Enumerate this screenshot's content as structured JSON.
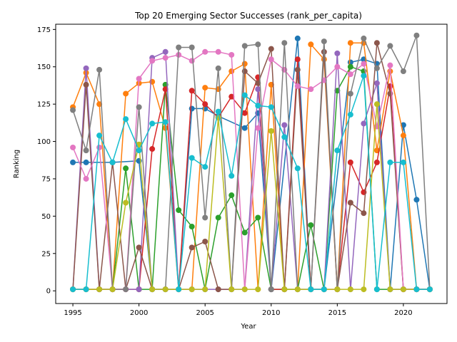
{
  "chart_data": {
    "type": "line",
    "title": "Top 20 Emerging Sector Successes (rank_per_capita)",
    "xlabel": "Year",
    "ylabel": "Ranking",
    "xlim": [
      1993.7,
      2023.3
    ],
    "ylim": [
      -8.5,
      178.5
    ],
    "xticks": [
      1995,
      2000,
      2005,
      2010,
      2015,
      2020
    ],
    "yticks": [
      0,
      25,
      50,
      75,
      100,
      125,
      150,
      175
    ],
    "grid": false,
    "legend": "none",
    "marker": "circle",
    "series": [
      {
        "color": "#1f77b4",
        "points": [
          [
            1995,
            86
          ],
          [
            1996,
            86
          ],
          [
            1998,
            86
          ],
          [
            2000,
            87
          ],
          [
            2001,
            1
          ],
          [
            2002,
            1
          ],
          [
            2003,
            1
          ],
          [
            2004,
            122
          ],
          [
            2005,
            122
          ],
          [
            2006,
            117
          ],
          [
            2008,
            109
          ],
          [
            2009,
            119
          ],
          [
            2010,
            1
          ],
          [
            2012,
            169
          ],
          [
            2013,
            1
          ],
          [
            2014,
            1
          ],
          [
            2016,
            153
          ],
          [
            2017,
            155
          ],
          [
            2018,
            152
          ],
          [
            2019,
            1
          ],
          [
            2020,
            111
          ],
          [
            2021,
            61
          ],
          [
            2022,
            1
          ]
        ]
      },
      {
        "color": "#ff7f0e",
        "points": [
          [
            1995,
            123
          ],
          [
            1996,
            146
          ],
          [
            1997,
            125
          ],
          [
            1998,
            1
          ],
          [
            1999,
            132
          ],
          [
            2000,
            139
          ],
          [
            2001,
            140
          ],
          [
            2002,
            109
          ],
          [
            2003,
            1
          ],
          [
            2004,
            1
          ],
          [
            2005,
            136
          ],
          [
            2006,
            135
          ],
          [
            2007,
            147
          ],
          [
            2008,
            152
          ],
          [
            2009,
            1
          ],
          [
            2010,
            138
          ],
          [
            2011,
            1
          ],
          [
            2012,
            1
          ],
          [
            2013,
            165
          ],
          [
            2014,
            155
          ],
          [
            2015,
            1
          ],
          [
            2016,
            166
          ],
          [
            2017,
            166
          ],
          [
            2018,
            94
          ],
          [
            2019,
            147
          ],
          [
            2020,
            104
          ],
          [
            2021,
            1
          ],
          [
            2022,
            1
          ]
        ]
      },
      {
        "color": "#2ca02c",
        "points": [
          [
            1995,
            1
          ],
          [
            1996,
            1
          ],
          [
            1997,
            1
          ],
          [
            1998,
            1
          ],
          [
            1999,
            82
          ],
          [
            2000,
            1
          ],
          [
            2001,
            1
          ],
          [
            2002,
            138
          ],
          [
            2003,
            54
          ],
          [
            2004,
            43
          ],
          [
            2005,
            1
          ],
          [
            2006,
            49
          ],
          [
            2007,
            64
          ],
          [
            2008,
            39
          ],
          [
            2009,
            49
          ],
          [
            2010,
            1
          ],
          [
            2011,
            1
          ],
          [
            2012,
            1
          ],
          [
            2013,
            44
          ],
          [
            2014,
            1
          ],
          [
            2015,
            134
          ],
          [
            2016,
            150
          ],
          [
            2017,
            147
          ],
          [
            2018,
            1
          ],
          [
            2019,
            1
          ],
          [
            2020,
            1
          ],
          [
            2021,
            1
          ],
          [
            2022,
            1
          ]
        ]
      },
      {
        "color": "#d62728",
        "points": [
          [
            1995,
            1
          ],
          [
            1996,
            1
          ],
          [
            1997,
            1
          ],
          [
            1998,
            1
          ],
          [
            1999,
            1
          ],
          [
            2000,
            1
          ],
          [
            2001,
            95
          ],
          [
            2002,
            135
          ],
          [
            2003,
            1
          ],
          [
            2004,
            134
          ],
          [
            2005,
            125
          ],
          [
            2006,
            116
          ],
          [
            2007,
            130
          ],
          [
            2008,
            119
          ],
          [
            2009,
            143
          ],
          [
            2010,
            1
          ],
          [
            2011,
            1
          ],
          [
            2012,
            155
          ],
          [
            2013,
            1
          ],
          [
            2014,
            1
          ],
          [
            2015,
            1
          ],
          [
            2016,
            86
          ],
          [
            2017,
            66
          ],
          [
            2018,
            86
          ],
          [
            2019,
            137
          ],
          [
            2020,
            1
          ],
          [
            2021,
            1
          ],
          [
            2022,
            1
          ]
        ]
      },
      {
        "color": "#9467bd",
        "points": [
          [
            1995,
            1
          ],
          [
            1996,
            149
          ],
          [
            1997,
            1
          ],
          [
            1998,
            1
          ],
          [
            1999,
            1
          ],
          [
            2000,
            1
          ],
          [
            2001,
            156
          ],
          [
            2002,
            160
          ],
          [
            2003,
            1
          ],
          [
            2004,
            1
          ],
          [
            2005,
            1
          ],
          [
            2006,
            1
          ],
          [
            2007,
            1
          ],
          [
            2008,
            1
          ],
          [
            2009,
            135
          ],
          [
            2010,
            1
          ],
          [
            2011,
            111
          ],
          [
            2012,
            1
          ],
          [
            2013,
            1
          ],
          [
            2014,
            1
          ],
          [
            2015,
            159
          ],
          [
            2016,
            1
          ],
          [
            2017,
            112
          ],
          [
            2018,
            139
          ],
          [
            2019,
            1
          ],
          [
            2020,
            1
          ],
          [
            2021,
            1
          ],
          [
            2022,
            1
          ]
        ]
      },
      {
        "color": "#8c564b",
        "points": [
          [
            1995,
            1
          ],
          [
            1996,
            138
          ],
          [
            1997,
            1
          ],
          [
            1998,
            86
          ],
          [
            1999,
            1
          ],
          [
            2000,
            29
          ],
          [
            2001,
            1
          ],
          [
            2002,
            1
          ],
          [
            2003,
            1
          ],
          [
            2004,
            29
          ],
          [
            2005,
            33
          ],
          [
            2006,
            1
          ],
          [
            2007,
            1
          ],
          [
            2008,
            147
          ],
          [
            2009,
            139
          ],
          [
            2010,
            162
          ],
          [
            2011,
            1
          ],
          [
            2012,
            148
          ],
          [
            2013,
            1
          ],
          [
            2014,
            160
          ],
          [
            2015,
            1
          ],
          [
            2016,
            59
          ],
          [
            2017,
            52
          ],
          [
            2018,
            166
          ],
          [
            2019,
            132
          ],
          [
            2020,
            1
          ],
          [
            2021,
            1
          ],
          [
            2022,
            1
          ]
        ]
      },
      {
        "color": "#e377c2",
        "points": [
          [
            1995,
            96
          ],
          [
            1996,
            75
          ],
          [
            1997,
            96
          ],
          [
            1998,
            1
          ],
          [
            1999,
            1
          ],
          [
            2000,
            142
          ],
          [
            2001,
            154
          ],
          [
            2002,
            156
          ],
          [
            2003,
            158
          ],
          [
            2004,
            154
          ],
          [
            2005,
            160
          ],
          [
            2006,
            160
          ],
          [
            2007,
            158
          ],
          [
            2008,
            1
          ],
          [
            2009,
            109
          ],
          [
            2010,
            155
          ],
          [
            2011,
            148
          ],
          [
            2012,
            137
          ],
          [
            2013,
            135
          ],
          [
            2014,
            141
          ],
          [
            2015,
            150
          ],
          [
            2016,
            145
          ],
          [
            2017,
            152
          ],
          [
            2018,
            110
          ],
          [
            2019,
            151
          ],
          [
            2020,
            1
          ],
          [
            2021,
            1
          ],
          [
            2022,
            1
          ]
        ]
      },
      {
        "color": "#7f7f7f",
        "points": [
          [
            1995,
            121
          ],
          [
            1996,
            94
          ],
          [
            1997,
            148
          ],
          [
            1998,
            1
          ],
          [
            1999,
            1
          ],
          [
            2000,
            123
          ],
          [
            2001,
            1
          ],
          [
            2002,
            1
          ],
          [
            2003,
            163
          ],
          [
            2004,
            163
          ],
          [
            2005,
            49
          ],
          [
            2006,
            149
          ],
          [
            2007,
            1
          ],
          [
            2008,
            164
          ],
          [
            2009,
            165
          ],
          [
            2010,
            1
          ],
          [
            2011,
            166
          ],
          [
            2012,
            1
          ],
          [
            2013,
            1
          ],
          [
            2014,
            167
          ],
          [
            2015,
            1
          ],
          [
            2016,
            132
          ],
          [
            2017,
            169
          ],
          [
            2018,
            149
          ],
          [
            2019,
            164
          ],
          [
            2020,
            147
          ],
          [
            2021,
            171
          ],
          [
            2022,
            1
          ]
        ]
      },
      {
        "color": "#bcbd22",
        "points": [
          [
            1995,
            1
          ],
          [
            1996,
            1
          ],
          [
            1997,
            1
          ],
          [
            1998,
            1
          ],
          [
            1999,
            59
          ],
          [
            2000,
            98
          ],
          [
            2001,
            1
          ],
          [
            2002,
            1
          ],
          [
            2003,
            1
          ],
          [
            2004,
            1
          ],
          [
            2005,
            1
          ],
          [
            2006,
            116
          ],
          [
            2007,
            1
          ],
          [
            2008,
            1
          ],
          [
            2009,
            1
          ],
          [
            2010,
            107
          ],
          [
            2011,
            1
          ],
          [
            2012,
            1
          ],
          [
            2013,
            1
          ],
          [
            2014,
            1
          ],
          [
            2015,
            1
          ],
          [
            2016,
            1
          ],
          [
            2017,
            1
          ],
          [
            2018,
            125
          ],
          [
            2019,
            1
          ],
          [
            2020,
            1
          ],
          [
            2021,
            1
          ],
          [
            2022,
            1
          ]
        ]
      },
      {
        "color": "#17becf",
        "points": [
          [
            1995,
            1
          ],
          [
            1996,
            1
          ],
          [
            1997,
            104
          ],
          [
            1998,
            86
          ],
          [
            1999,
            115
          ],
          [
            2000,
            94
          ],
          [
            2001,
            112
          ],
          [
            2002,
            113
          ],
          [
            2003,
            1
          ],
          [
            2004,
            89
          ],
          [
            2005,
            83
          ],
          [
            2006,
            120
          ],
          [
            2007,
            77
          ],
          [
            2008,
            131
          ],
          [
            2009,
            124
          ],
          [
            2010,
            123
          ],
          [
            2011,
            103
          ],
          [
            2012,
            82
          ],
          [
            2013,
            1
          ],
          [
            2014,
            1
          ],
          [
            2015,
            94
          ],
          [
            2016,
            118
          ],
          [
            2017,
            144
          ],
          [
            2018,
            1
          ],
          [
            2019,
            86
          ],
          [
            2020,
            86
          ],
          [
            2021,
            1
          ],
          [
            2022,
            1
          ]
        ]
      }
    ]
  }
}
